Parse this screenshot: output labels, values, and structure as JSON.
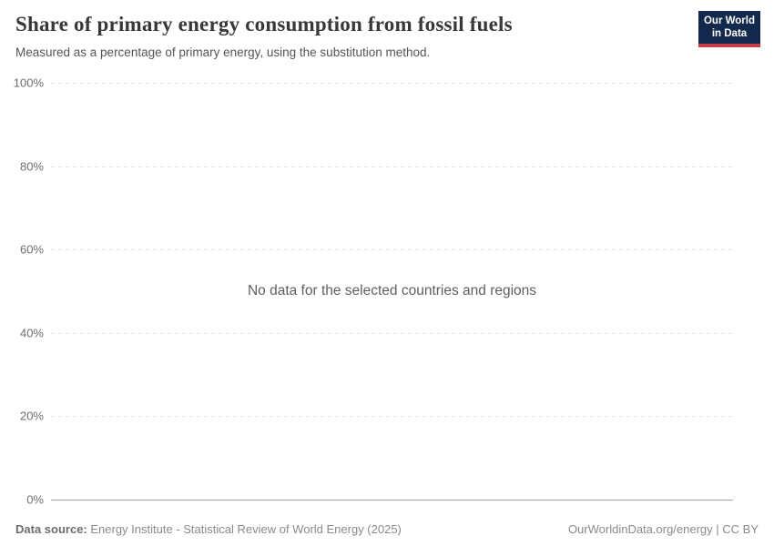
{
  "header": {
    "title": "Share of primary energy consumption from fossil fuels",
    "subtitle": "Measured as a percentage of primary energy, using the substitution method.",
    "logo": {
      "line1": "Our World",
      "line2": "in Data",
      "bg_color": "#12294d",
      "bar_color": "#c43a45"
    }
  },
  "chart_data": {
    "type": "line",
    "title": "Share of primary energy consumption from fossil fuels",
    "subtitle": "Measured as a percentage of primary energy, using the substitution method.",
    "xlabel": "",
    "ylabel": "",
    "ylim": [
      0,
      100
    ],
    "yticks": [
      {
        "value": 100,
        "label": "100%"
      },
      {
        "value": 80,
        "label": "80%"
      },
      {
        "value": 60,
        "label": "60%"
      },
      {
        "value": 40,
        "label": "40%"
      },
      {
        "value": 20,
        "label": "20%"
      },
      {
        "value": 0,
        "label": "0%"
      }
    ],
    "grid": "horizontal dashed, solid baseline at 0%",
    "series": [],
    "empty_state_message": "No data for the selected countries and regions",
    "colors": {
      "gridline": "#e3e3e3",
      "baseline": "#a3a3a3",
      "tick_label": "#6e6e6e",
      "empty_message": "#5f5f5f"
    }
  },
  "footer": {
    "data_source_label": "Data source:",
    "data_source_value": " Energy Institute - Statistical Review of World Energy (2025)",
    "attribution": "OurWorldinData.org/energy | CC BY"
  }
}
